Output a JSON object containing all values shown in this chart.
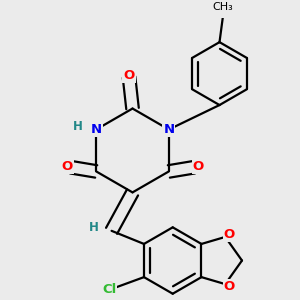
{
  "background_color": "#ebebeb",
  "bond_color": "#000000",
  "bond_width": 1.6,
  "atom_colors": {
    "O": "#ff0000",
    "N": "#0000ee",
    "Cl": "#33bb33",
    "H": "#228888",
    "C": "#000000"
  },
  "font_size": 9.5,
  "figsize": [
    3.0,
    3.0
  ],
  "dpi": 100
}
